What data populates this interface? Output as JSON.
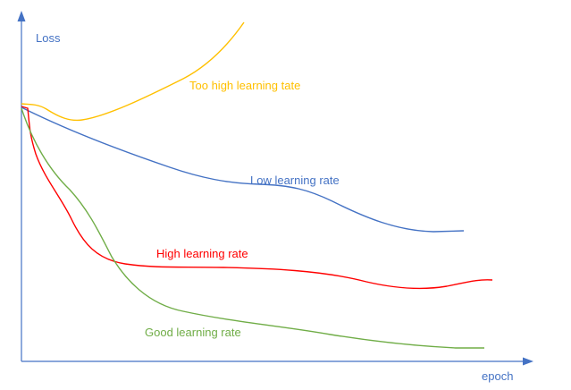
{
  "diagram": {
    "y_axis_label": "Loss",
    "x_axis_label": "epoch",
    "axis_color": "#4472c4",
    "curves": [
      {
        "label": "Too high learning tate",
        "color": "#ffc000"
      },
      {
        "label": "Low learning rate",
        "color": "#4472c4"
      },
      {
        "label": "High learning rate",
        "color": "#ff0000"
      },
      {
        "label": "Good learning rate",
        "color": "#70ad47"
      }
    ]
  }
}
